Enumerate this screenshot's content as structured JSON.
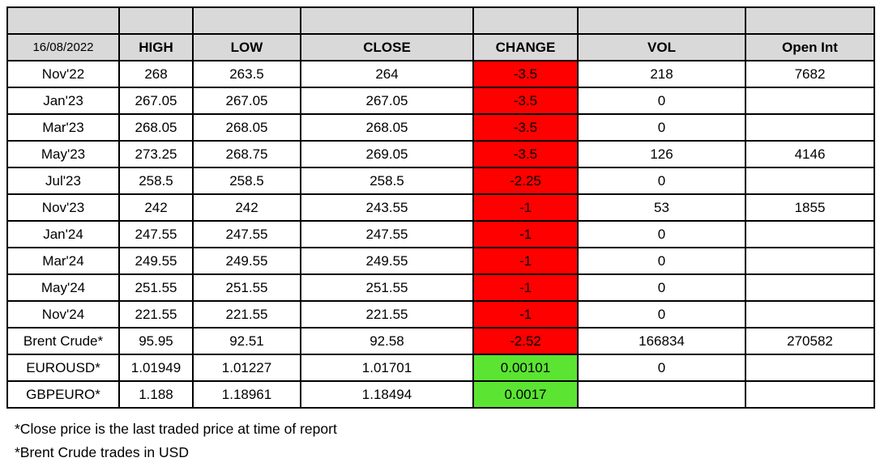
{
  "colors": {
    "header_bg": "#d9d9d9",
    "negative_change_bg": "#ff0000",
    "positive_change_bg": "#5be432",
    "border": "#000000"
  },
  "chart_data": {
    "type": "table",
    "report_date": "16/08/2022",
    "columns": [
      "HIGH",
      "LOW",
      "CLOSE",
      "CHANGE",
      "VOL",
      "Open Int"
    ],
    "rows": [
      {
        "label": "Nov'22",
        "high": "268",
        "low": "263.5",
        "close": "264",
        "change": "-3.5",
        "change_color": "negative",
        "vol": "218",
        "open_int": "7682"
      },
      {
        "label": "Jan'23",
        "high": "267.05",
        "low": "267.05",
        "close": "267.05",
        "change": "-3.5",
        "change_color": "negative",
        "vol": "0",
        "open_int": ""
      },
      {
        "label": "Mar'23",
        "high": "268.05",
        "low": "268.05",
        "close": "268.05",
        "change": "-3.5",
        "change_color": "negative",
        "vol": "0",
        "open_int": ""
      },
      {
        "label": "May'23",
        "high": "273.25",
        "low": "268.75",
        "close": "269.05",
        "change": "-3.5",
        "change_color": "negative",
        "vol": "126",
        "open_int": "4146"
      },
      {
        "label": "Jul'23",
        "high": "258.5",
        "low": "258.5",
        "close": "258.5",
        "change": "-2.25",
        "change_color": "negative",
        "vol": "0",
        "open_int": ""
      },
      {
        "label": "Nov'23",
        "high": "242",
        "low": "242",
        "close": "243.55",
        "change": "-1",
        "change_color": "negative",
        "vol": "53",
        "open_int": "1855"
      },
      {
        "label": "Jan'24",
        "high": "247.55",
        "low": "247.55",
        "close": "247.55",
        "change": "-1",
        "change_color": "negative",
        "vol": "0",
        "open_int": ""
      },
      {
        "label": "Mar'24",
        "high": "249.55",
        "low": "249.55",
        "close": "249.55",
        "change": "-1",
        "change_color": "negative",
        "vol": "0",
        "open_int": ""
      },
      {
        "label": "May'24",
        "high": "251.55",
        "low": "251.55",
        "close": "251.55",
        "change": "-1",
        "change_color": "negative",
        "vol": "0",
        "open_int": ""
      },
      {
        "label": "Nov'24",
        "high": "221.55",
        "low": "221.55",
        "close": "221.55",
        "change": "-1",
        "change_color": "negative",
        "vol": "0",
        "open_int": ""
      },
      {
        "label": "Brent Crude*",
        "high": "95.95",
        "low": "92.51",
        "close": "92.58",
        "change": "-2.52",
        "change_color": "negative",
        "vol": "166834",
        "open_int": "270582"
      },
      {
        "label": "EUROUSD*",
        "high": "1.01949",
        "low": "1.01227",
        "close": "1.01701",
        "change": "0.00101",
        "change_color": "positive",
        "vol": "0",
        "open_int": ""
      },
      {
        "label": "GBPEURO*",
        "high": "1.188",
        "low": "1.18961",
        "close": "1.18494",
        "change": "0.0017",
        "change_color": "positive",
        "vol": "",
        "open_int": ""
      }
    ]
  },
  "footnotes": [
    "*Close price is the last traded price at time of report",
    "*Brent Crude trades in USD"
  ]
}
